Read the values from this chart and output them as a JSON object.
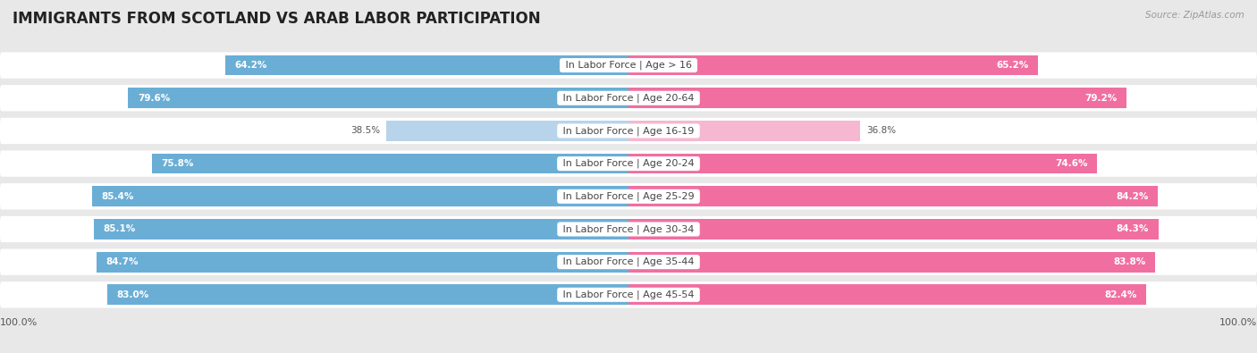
{
  "title": "IMMIGRANTS FROM SCOTLAND VS ARAB LABOR PARTICIPATION",
  "source": "Source: ZipAtlas.com",
  "categories": [
    "In Labor Force | Age > 16",
    "In Labor Force | Age 20-64",
    "In Labor Force | Age 16-19",
    "In Labor Force | Age 20-24",
    "In Labor Force | Age 25-29",
    "In Labor Force | Age 30-34",
    "In Labor Force | Age 35-44",
    "In Labor Force | Age 45-54"
  ],
  "scotland_values": [
    64.2,
    79.6,
    38.5,
    75.8,
    85.4,
    85.1,
    84.7,
    83.0
  ],
  "arab_values": [
    65.2,
    79.2,
    36.8,
    74.6,
    84.2,
    84.3,
    83.8,
    82.4
  ],
  "scotland_color": "#6aaed6",
  "scotland_color_light": "#b8d4ea",
  "arab_color": "#f06fa0",
  "arab_color_light": "#f5b8d0",
  "bar_height": 0.62,
  "background_color": "#e8e8e8",
  "row_bg_color": "#f2f2f2",
  "title_fontsize": 12,
  "label_fontsize": 8,
  "value_fontsize": 7.5,
  "legend_fontsize": 9,
  "low_threshold": 50
}
